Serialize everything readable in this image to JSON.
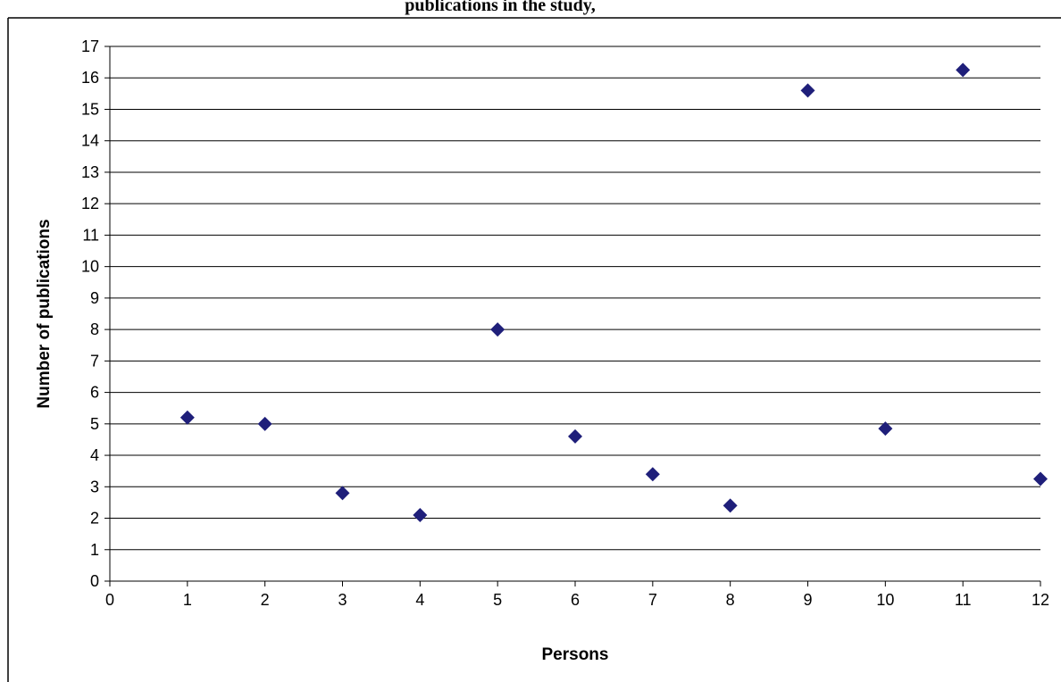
{
  "chart_data": {
    "type": "scatter",
    "title": "",
    "title_fragment": "publications in the study,",
    "xlabel": "Persons",
    "ylabel": "Number of publications",
    "xlim": [
      0,
      12
    ],
    "ylim": [
      0,
      17
    ],
    "x_ticks": [
      "0",
      "1",
      "2",
      "3",
      "4",
      "5",
      "6",
      "7",
      "8",
      "9",
      "10",
      "11",
      "12"
    ],
    "y_ticks": [
      "0",
      "1",
      "2",
      "3",
      "4",
      "5",
      "6",
      "7",
      "8",
      "9",
      "10",
      "11",
      "12",
      "13",
      "14",
      "15",
      "16",
      "17"
    ],
    "grid": "horizontal",
    "legend": "none",
    "marker": "diamond",
    "marker_color": "#1f1f7a",
    "series": [
      {
        "x": [
          1,
          2,
          3,
          4,
          5,
          6,
          7,
          8,
          9,
          10,
          11,
          12
        ],
        "y": [
          5.2,
          5.0,
          2.8,
          2.1,
          8.0,
          4.6,
          3.4,
          2.4,
          15.6,
          4.85,
          16.25,
          3.25
        ]
      }
    ]
  }
}
